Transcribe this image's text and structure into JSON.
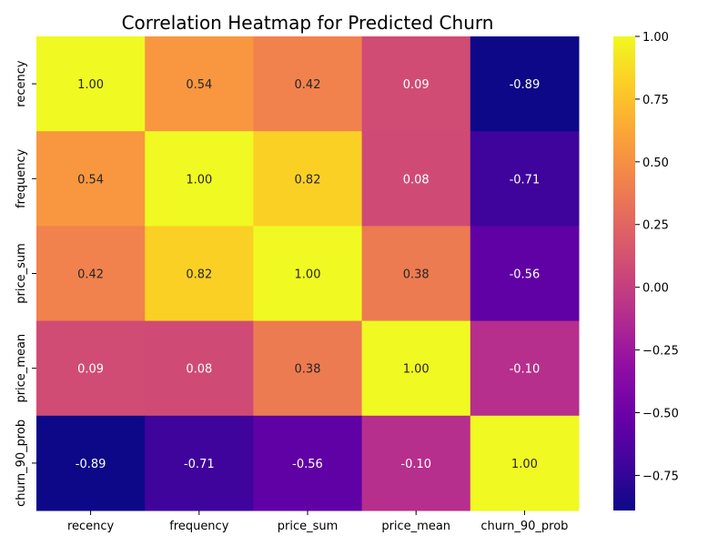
{
  "chart_data": {
    "type": "heatmap",
    "title": "Correlation Heatmap for Predicted Churn",
    "xlabel": "",
    "ylabel": "",
    "x_categories": [
      "recency",
      "frequency",
      "price_sum",
      "price_mean",
      "churn_90_prob"
    ],
    "y_categories": [
      "recency",
      "frequency",
      "price_sum",
      "price_mean",
      "churn_90_prob"
    ],
    "values": [
      [
        1.0,
        0.54,
        0.42,
        0.09,
        -0.89
      ],
      [
        0.54,
        1.0,
        0.82,
        0.08,
        -0.71
      ],
      [
        0.42,
        0.82,
        1.0,
        0.38,
        -0.56
      ],
      [
        0.09,
        0.08,
        0.38,
        1.0,
        -0.1
      ],
      [
        -0.89,
        -0.71,
        -0.56,
        -0.1,
        1.0
      ]
    ],
    "value_labels": [
      [
        "1.00",
        "0.54",
        "0.42",
        "0.09",
        "-0.89"
      ],
      [
        "0.54",
        "1.00",
        "0.82",
        "0.08",
        "-0.71"
      ],
      [
        "0.42",
        "0.82",
        "1.00",
        "0.38",
        "-0.56"
      ],
      [
        "0.09",
        "0.08",
        "0.38",
        "1.00",
        "-0.10"
      ],
      [
        "-0.89",
        "-0.71",
        "-0.56",
        "-0.10",
        "1.00"
      ]
    ],
    "colorscale": "plasma",
    "zlim": [
      -0.89,
      1.0
    ],
    "colorbar_ticks": [
      1.0,
      0.75,
      0.5,
      0.25,
      0.0,
      -0.25,
      -0.5,
      -0.75
    ],
    "colorbar_tick_labels": [
      "1.00",
      "0.75",
      "0.50",
      "0.25",
      "0.00",
      "−0.25",
      "−0.50",
      "−0.75"
    ],
    "grid": false,
    "legend": "colorbar-right"
  }
}
